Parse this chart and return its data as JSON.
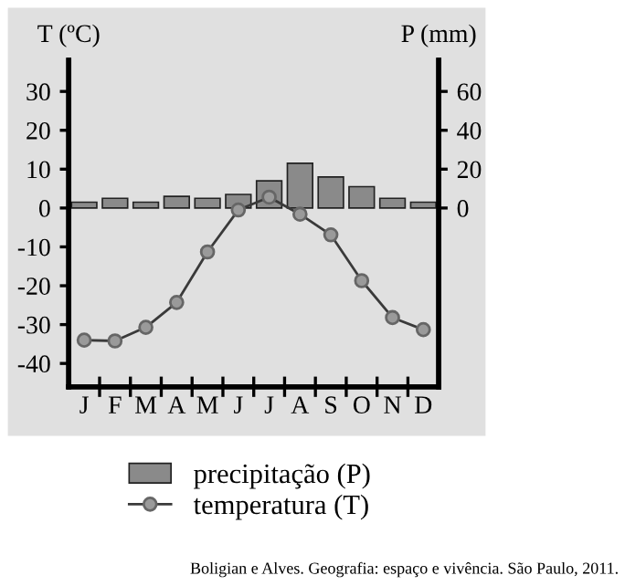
{
  "chart_data": {
    "type": "bar",
    "categories": [
      "J",
      "F",
      "M",
      "A",
      "M",
      "J",
      "J",
      "A",
      "S",
      "O",
      "N",
      "D"
    ],
    "ylabel": "T (ºC)",
    "y2label": "P (mm)",
    "series": [
      {
        "name": "precipitação (P)",
        "axis": "y2",
        "color": "#8a8a8a",
        "values": [
          3,
          5,
          3,
          6,
          5,
          7,
          14,
          23,
          16,
          11,
          5,
          3
        ]
      },
      {
        "name": "temperatura (T)",
        "type": "line",
        "color": "#3a3a3a",
        "values": [
          -34,
          -34.2,
          -30.7,
          -24.3,
          -11.3,
          -0.5,
          2.8,
          -1.6,
          -6.9,
          -18.7,
          -28.2,
          -31.3
        ]
      }
    ],
    "ylim": [
      -46,
      38
    ],
    "yticks": [
      -40,
      -30,
      -20,
      -10,
      0,
      10,
      20,
      30
    ],
    "y2lim": [
      -92,
      76
    ],
    "y2ticks": [
      0,
      20,
      40,
      60
    ],
    "marker": "circle",
    "grid": false,
    "legend": "bottom",
    "annotations": [
      "Boligian e Alves. Geografia: espaço e vivência. São Paulo, 2011."
    ]
  }
}
